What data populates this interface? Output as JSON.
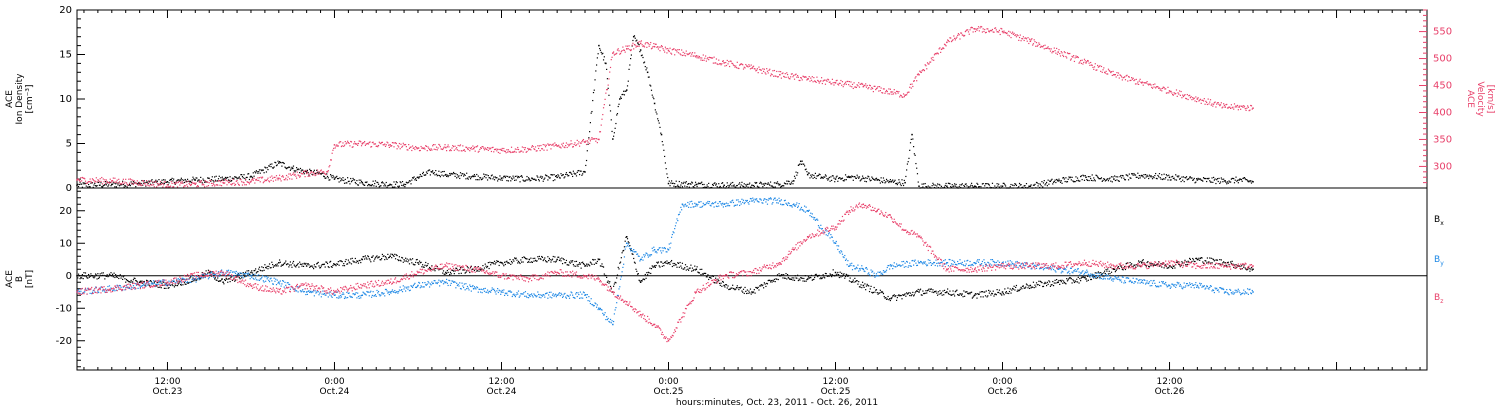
{
  "colors": {
    "black": "#000000",
    "pink": "#e8406a",
    "blue": "#1e88e5"
  },
  "xaxis": {
    "title": "hours:minutes, Oct. 23, 2011 - Oct. 26, 2011",
    "range_hours": [
      5.5,
      102.5
    ],
    "ticks": [
      {
        "hour": 12,
        "time": "12:00",
        "date": "Oct.23"
      },
      {
        "hour": 24,
        "time": "0:00",
        "date": "Oct.24"
      },
      {
        "hour": 36,
        "time": "12:00",
        "date": "Oct.24"
      },
      {
        "hour": 48,
        "time": "0:00",
        "date": "Oct.25"
      },
      {
        "hour": 60,
        "time": "12:00",
        "date": "Oct.25"
      },
      {
        "hour": 72,
        "time": "0:00",
        "date": "Oct.26"
      },
      {
        "hour": 84,
        "time": "12:00",
        "date": "Oct.26"
      }
    ]
  },
  "panels": {
    "top": {
      "left_label": [
        "ACE",
        "Ion Density",
        "[cm⁻³]"
      ],
      "right_label": [
        "ACE",
        "Velocity",
        "[km/s]"
      ],
      "left_ticks": [
        "0",
        "5",
        "10",
        "15",
        "20"
      ],
      "right_ticks": [
        "300",
        "350",
        "400",
        "450",
        "500",
        "550"
      ]
    },
    "bottom": {
      "left_label": [
        "ACE",
        "B",
        "[nT]"
      ],
      "left_ticks": [
        "-20",
        "-10",
        "0",
        "10",
        "20"
      ],
      "legend": [
        {
          "label": "B",
          "sub": "x",
          "color": "#000000"
        },
        {
          "label": "B",
          "sub": "y",
          "color": "#1e88e5"
        },
        {
          "label": "B",
          "sub": "z",
          "color": "#e8406a"
        }
      ]
    }
  },
  "chart_data": [
    {
      "type": "scatter",
      "title": "",
      "xlabel": "hours:minutes, Oct. 23, 2011 - Oct. 26, 2011",
      "ylabel": "Ion Density [cm⁻³]",
      "y2label": "Velocity [km/s]",
      "xlim": [
        5.5,
        102.5
      ],
      "ylim": [
        0,
        20
      ],
      "y2lim": [
        260,
        590
      ],
      "series": [
        {
          "name": "Ion Density",
          "axis": "left",
          "color": "#000000",
          "x": [
            5.5,
            8,
            10,
            12,
            14,
            16,
            18,
            20,
            21,
            22,
            23,
            24,
            26,
            28,
            29,
            30,
            31,
            32,
            34,
            36,
            38,
            40,
            42,
            43,
            43.5,
            44,
            44.5,
            45,
            45.5,
            46,
            46.5,
            47,
            47.5,
            48,
            50,
            52,
            54,
            56,
            57,
            57.5,
            58,
            59,
            60,
            61,
            62,
            63,
            64,
            65,
            65.5,
            66,
            68,
            70,
            72,
            74,
            76,
            78,
            80,
            82,
            84,
            86,
            88,
            89,
            90
          ],
          "values": [
            0.3,
            0.4,
            0.5,
            0.7,
            0.9,
            1.0,
            1.3,
            2.8,
            2.2,
            1.8,
            1.6,
            1.0,
            0.6,
            0.4,
            0.4,
            1.2,
            1.8,
            1.5,
            1.3,
            1.1,
            1.0,
            1.2,
            1.8,
            16.0,
            14.0,
            5.5,
            10.0,
            11.0,
            17.0,
            15.5,
            13.0,
            9.5,
            6.0,
            0.5,
            0.4,
            0.3,
            0.3,
            0.4,
            0.8,
            3.0,
            1.5,
            1.2,
            1.0,
            1.2,
            1.1,
            0.9,
            0.7,
            0.6,
            6.0,
            0.2,
            0.2,
            0.2,
            0.2,
            0.2,
            0.8,
            1.2,
            1.0,
            1.4,
            1.2,
            0.9,
            0.8,
            0.9,
            0.7
          ]
        },
        {
          "name": "Velocity",
          "axis": "right",
          "color": "#e8406a",
          "x": [
            5.5,
            8,
            10,
            12,
            14,
            16,
            18,
            20,
            22,
            23.5,
            24,
            26,
            28,
            30,
            32,
            34,
            36,
            38,
            40,
            42,
            43,
            44,
            45,
            46,
            47,
            48,
            50,
            52,
            54,
            56,
            58,
            60,
            62,
            64,
            65,
            66,
            68,
            70,
            72,
            74,
            76,
            78,
            80,
            82,
            84,
            86,
            88,
            89,
            90
          ],
          "values": [
            275,
            273,
            270,
            266,
            267,
            270,
            272,
            278,
            287,
            290,
            340,
            342,
            340,
            334,
            335,
            333,
            330,
            332,
            338,
            345,
            350,
            510,
            518,
            528,
            522,
            515,
            505,
            492,
            482,
            470,
            462,
            455,
            448,
            438,
            432,
            470,
            530,
            555,
            550,
            532,
            512,
            492,
            470,
            455,
            440,
            425,
            410,
            410,
            408
          ]
        }
      ]
    },
    {
      "type": "scatter",
      "title": "",
      "xlabel": "hours:minutes, Oct. 23, 2011 - Oct. 26, 2011",
      "ylabel": "B [nT]",
      "xlim": [
        5.5,
        102.5
      ],
      "ylim": [
        -29,
        27
      ],
      "series": [
        {
          "name": "Bx",
          "color": "#000000",
          "x": [
            5.5,
            8,
            10,
            12,
            14,
            15,
            16,
            18,
            20,
            22,
            24,
            26,
            28,
            30,
            32,
            34,
            36,
            38,
            40,
            42,
            43,
            44,
            45,
            46,
            47,
            48,
            50,
            52,
            54,
            56,
            58,
            60,
            62,
            64,
            66,
            68,
            70,
            72,
            74,
            76,
            78,
            80,
            82,
            84,
            86,
            88,
            89,
            90
          ],
          "values": [
            0,
            0,
            -2,
            -3,
            -1,
            1,
            -2,
            1,
            4,
            3,
            3.5,
            5,
            6,
            4,
            1,
            2,
            4,
            5,
            5,
            3,
            5,
            -5,
            12,
            -2,
            3,
            4,
            2,
            -3,
            -5,
            0,
            -1,
            1,
            -3,
            -7,
            -5,
            -5,
            -6,
            -5,
            -3,
            -2,
            -1,
            2,
            4,
            3,
            5,
            4,
            3,
            2
          ]
        },
        {
          "name": "By",
          "color": "#1e88e5",
          "x": [
            5.5,
            8,
            10,
            12,
            14,
            16,
            18,
            20,
            22,
            24,
            26,
            28,
            30,
            32,
            34,
            36,
            38,
            40,
            42,
            43,
            44,
            45,
            46,
            47,
            48,
            49,
            50,
            52,
            54,
            56,
            57,
            58,
            60,
            61,
            62,
            63,
            64,
            66,
            68,
            70,
            72,
            74,
            76,
            78,
            80,
            82,
            84,
            86,
            88,
            90
          ],
          "values": [
            -5,
            -4,
            -3,
            -2,
            -1,
            1,
            0,
            -2,
            -5,
            -6,
            -6,
            -5,
            -3,
            -2,
            -4,
            -5,
            -6,
            -6,
            -6,
            -10,
            -15,
            10,
            5,
            8,
            8,
            22,
            22,
            22,
            23,
            23,
            22,
            20,
            10,
            3,
            2,
            0,
            3,
            4,
            4,
            4,
            4,
            3,
            2,
            1,
            -1,
            -2,
            -3,
            -3,
            -5,
            -5
          ]
        },
        {
          "name": "Bz",
          "color": "#e8406a",
          "x": [
            5.5,
            8,
            10,
            12,
            14,
            16,
            18,
            20,
            22,
            24,
            26,
            28,
            30,
            32,
            34,
            36,
            38,
            40,
            42,
            43,
            44,
            45,
            46,
            47,
            48,
            50,
            52,
            54,
            56,
            57,
            58,
            60,
            61,
            62,
            63,
            64,
            65,
            66,
            68,
            70,
            72,
            74,
            76,
            78,
            80,
            82,
            84,
            86,
            88,
            90
          ],
          "values": [
            -5,
            -4,
            -3,
            -2,
            0,
            1,
            -3,
            -5,
            -3,
            -5,
            -3,
            -2,
            1,
            3,
            2,
            0,
            -1,
            1,
            0,
            -1,
            -5,
            -8,
            -12,
            -15,
            -20,
            -5,
            0,
            1,
            4,
            8,
            12,
            15,
            20,
            22,
            20,
            18,
            14,
            12,
            2,
            2,
            3,
            3,
            3,
            4,
            3,
            3,
            4,
            3,
            3,
            3
          ]
        }
      ]
    }
  ]
}
